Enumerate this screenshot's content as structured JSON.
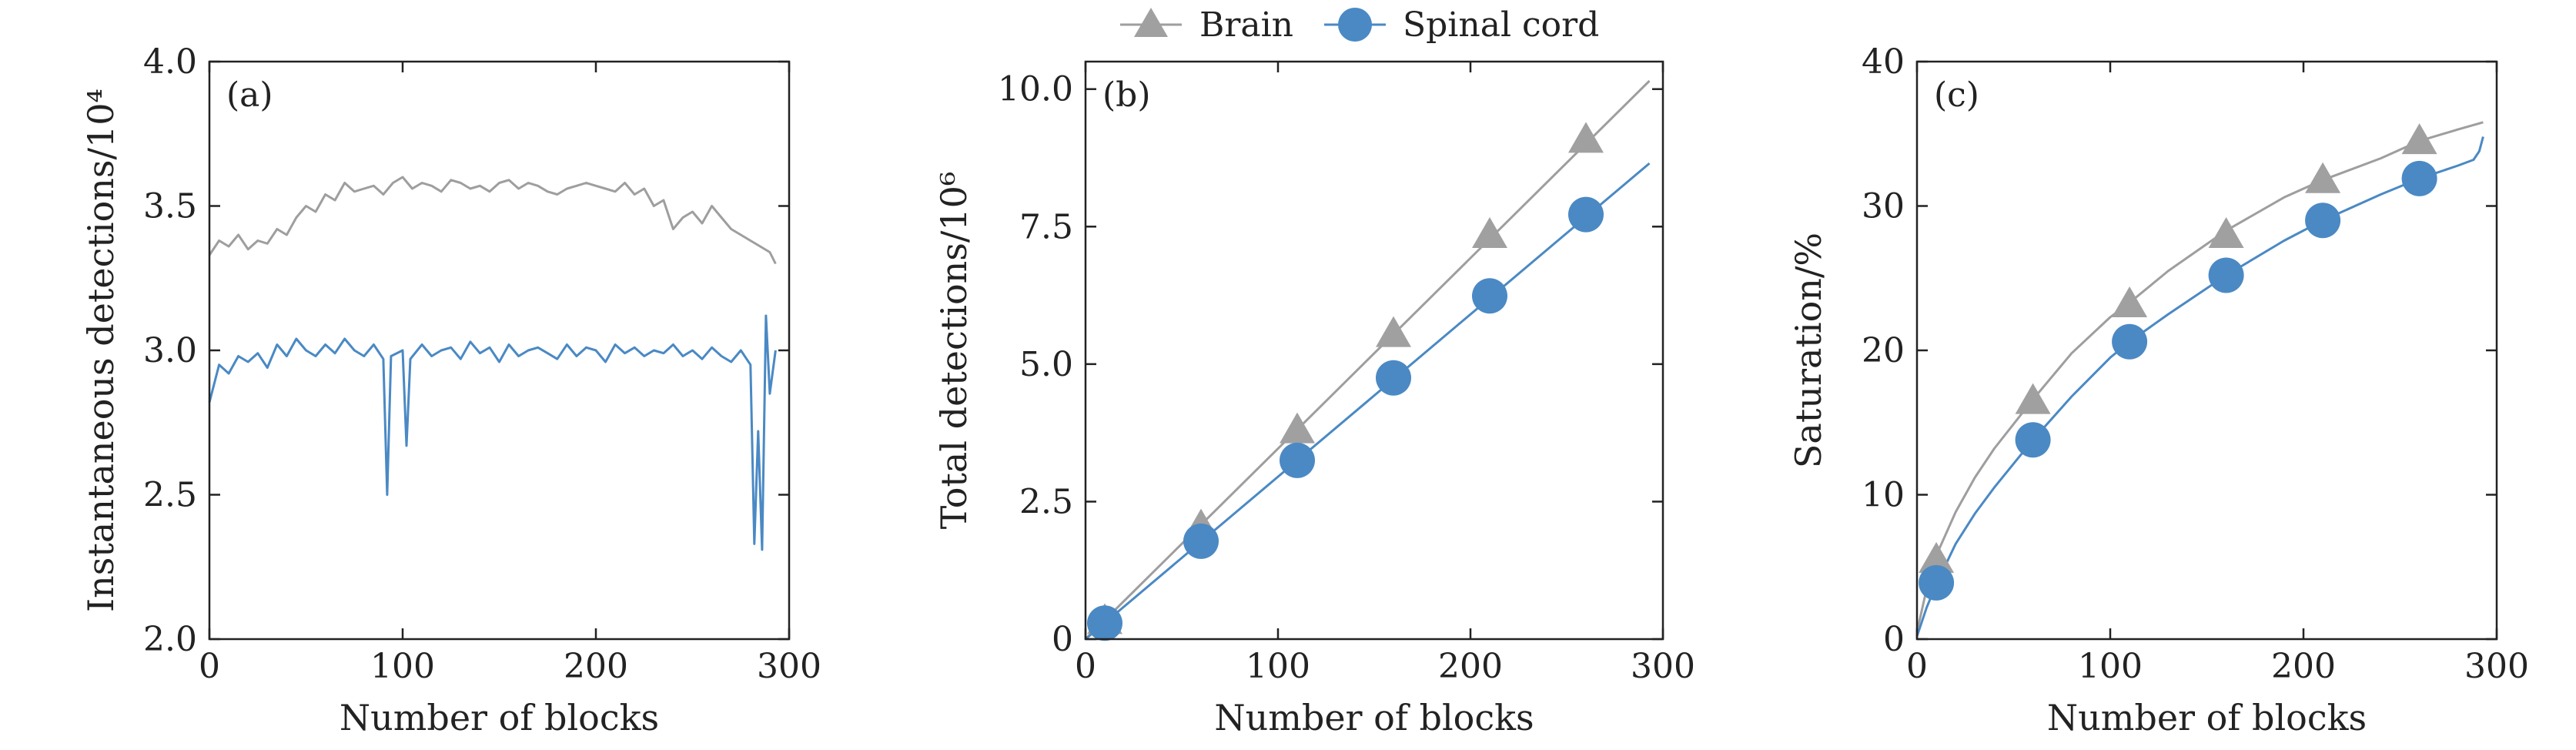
{
  "legend": {
    "entries": [
      {
        "name": "Brain",
        "marker": "triangle",
        "color": "#9e9e9e"
      },
      {
        "name": "Spinal cord",
        "marker": "circle",
        "color": "#4a89c4"
      }
    ]
  },
  "colors": {
    "brain": "#9e9e9e",
    "spinal": "#4a89c4",
    "spinal_marker": "#4a89c4",
    "brain_marker": "#a0a0a0"
  },
  "chart_data": [
    {
      "type": "line",
      "panel": "(a)",
      "xlabel": "Number of blocks",
      "ylabel": "Instantaneous detections/10⁴",
      "xlim": [
        0,
        300
      ],
      "ylim": [
        2.0,
        4.0
      ],
      "xticks": [
        0,
        100,
        200,
        300
      ],
      "yticks": [
        2.0,
        2.5,
        3.0,
        3.5,
        4.0
      ],
      "ytick_labels": [
        "2.0",
        "2.5",
        "3.0",
        "3.5",
        "4.0"
      ],
      "grid": false,
      "series": [
        {
          "name": "Brain",
          "x": [
            0,
            5,
            10,
            15,
            20,
            25,
            30,
            35,
            40,
            45,
            50,
            55,
            60,
            65,
            70,
            75,
            80,
            85,
            90,
            95,
            100,
            105,
            110,
            115,
            120,
            125,
            130,
            135,
            140,
            145,
            150,
            155,
            160,
            165,
            170,
            175,
            180,
            185,
            190,
            195,
            200,
            205,
            210,
            215,
            220,
            225,
            230,
            235,
            240,
            245,
            250,
            255,
            260,
            265,
            270,
            275,
            280,
            285,
            290,
            293
          ],
          "values": [
            3.33,
            3.38,
            3.36,
            3.4,
            3.35,
            3.38,
            3.37,
            3.42,
            3.4,
            3.46,
            3.5,
            3.48,
            3.54,
            3.52,
            3.58,
            3.55,
            3.56,
            3.57,
            3.54,
            3.58,
            3.6,
            3.56,
            3.58,
            3.57,
            3.55,
            3.59,
            3.58,
            3.56,
            3.57,
            3.55,
            3.58,
            3.59,
            3.56,
            3.58,
            3.57,
            3.55,
            3.54,
            3.56,
            3.57,
            3.58,
            3.57,
            3.56,
            3.55,
            3.58,
            3.54,
            3.56,
            3.5,
            3.52,
            3.42,
            3.46,
            3.48,
            3.44,
            3.5,
            3.46,
            3.42,
            3.4,
            3.38,
            3.36,
            3.34,
            3.3
          ]
        },
        {
          "name": "Spinal cord",
          "x": [
            0,
            5,
            10,
            15,
            20,
            25,
            30,
            35,
            40,
            45,
            50,
            55,
            60,
            65,
            70,
            75,
            80,
            85,
            90,
            92,
            94,
            100,
            102,
            104,
            110,
            115,
            120,
            125,
            130,
            135,
            140,
            145,
            150,
            155,
            160,
            165,
            170,
            175,
            180,
            185,
            190,
            195,
            200,
            205,
            210,
            215,
            220,
            225,
            230,
            235,
            240,
            245,
            250,
            255,
            260,
            265,
            270,
            275,
            280,
            282,
            284,
            286,
            288,
            290,
            293
          ],
          "values": [
            2.82,
            2.95,
            2.92,
            2.98,
            2.96,
            2.99,
            2.94,
            3.02,
            2.98,
            3.04,
            3.0,
            2.98,
            3.02,
            2.99,
            3.04,
            3.0,
            2.98,
            3.02,
            2.97,
            2.5,
            2.98,
            3.0,
            2.67,
            2.97,
            3.02,
            2.98,
            3.0,
            3.01,
            2.97,
            3.03,
            2.99,
            3.01,
            2.96,
            3.02,
            2.98,
            3.0,
            3.01,
            2.99,
            2.97,
            3.02,
            2.98,
            3.01,
            3.0,
            2.96,
            3.02,
            2.99,
            3.01,
            2.98,
            3.0,
            2.99,
            3.02,
            2.98,
            3.0,
            2.97,
            3.01,
            2.98,
            2.96,
            3.0,
            2.95,
            2.33,
            2.72,
            2.31,
            3.12,
            2.85,
            3.0
          ]
        }
      ]
    },
    {
      "type": "line",
      "panel": "(b)",
      "xlabel": "Number of blocks",
      "ylabel": "Total detections/10⁶",
      "xlim": [
        0,
        300
      ],
      "ylim": [
        0,
        10.5
      ],
      "xticks": [
        0,
        100,
        200,
        300
      ],
      "yticks": [
        0,
        2.5,
        5.0,
        7.5,
        10.0
      ],
      "ytick_labels": [
        "0",
        "2.5",
        "5.0",
        "7.5",
        "10.0"
      ],
      "grid": false,
      "series": [
        {
          "name": "Brain",
          "line_x": [
            0,
            293
          ],
          "line_values": [
            0.0,
            10.15
          ],
          "marker_x": [
            10,
            60,
            110,
            160,
            210,
            260
          ],
          "marker_values": [
            0.33,
            2.05,
            3.8,
            5.55,
            7.35,
            9.08
          ]
        },
        {
          "name": "Spinal cord",
          "line_x": [
            0,
            293
          ],
          "line_values": [
            0.0,
            8.65
          ],
          "marker_x": [
            10,
            60,
            110,
            160,
            210,
            260
          ],
          "marker_values": [
            0.29,
            1.78,
            3.25,
            4.75,
            6.24,
            7.72
          ]
        }
      ]
    },
    {
      "type": "line",
      "panel": "(c)",
      "xlabel": "Number of blocks",
      "ylabel": "Saturation/%",
      "xlim": [
        0,
        300
      ],
      "ylim": [
        0,
        40
      ],
      "xticks": [
        0,
        100,
        200,
        300
      ],
      "yticks": [
        0,
        10,
        20,
        30,
        40
      ],
      "ytick_labels": [
        "0",
        "10",
        "20",
        "30",
        "40"
      ],
      "grid": false,
      "series": [
        {
          "name": "Brain",
          "line_x": [
            0,
            5,
            10,
            20,
            30,
            40,
            60,
            80,
            100,
            110,
            130,
            160,
            190,
            210,
            240,
            260,
            280,
            293
          ],
          "line_values": [
            0.5,
            3.5,
            5.8,
            8.8,
            11.2,
            13.2,
            16.6,
            19.8,
            22.3,
            23.3,
            25.5,
            28.3,
            30.6,
            31.8,
            33.3,
            34.5,
            35.3,
            35.8
          ],
          "marker_x": [
            10,
            60,
            110,
            160,
            210,
            260
          ],
          "marker_values": [
            5.5,
            16.5,
            23.2,
            28.0,
            31.8,
            34.5
          ]
        },
        {
          "name": "Spinal cord",
          "line_x": [
            0,
            5,
            10,
            20,
            30,
            40,
            60,
            80,
            100,
            110,
            130,
            160,
            190,
            210,
            240,
            260,
            280,
            288,
            291,
            293
          ],
          "line_values": [
            0.2,
            2.2,
            3.8,
            6.6,
            8.7,
            10.5,
            13.8,
            16.8,
            19.5,
            20.6,
            22.5,
            25.2,
            27.6,
            29.0,
            30.8,
            31.9,
            32.8,
            33.2,
            33.8,
            34.8
          ],
          "marker_x": [
            10,
            60,
            110,
            160,
            210,
            260
          ],
          "marker_values": [
            3.9,
            13.8,
            20.6,
            25.2,
            29.0,
            31.9
          ]
        }
      ]
    }
  ]
}
